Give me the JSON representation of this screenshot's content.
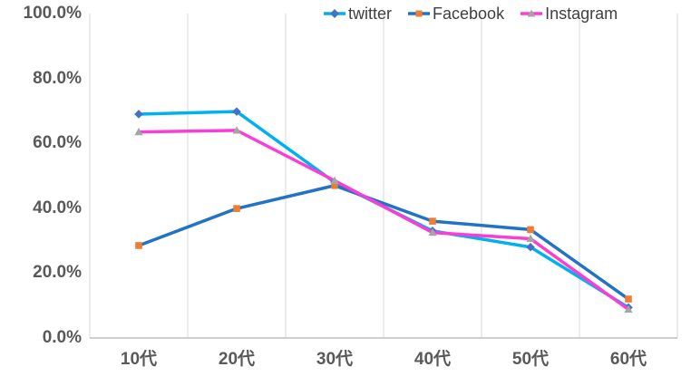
{
  "chart_data": {
    "type": "line",
    "categories": [
      "10代",
      "20代",
      "30代",
      "40代",
      "50代",
      "60代"
    ],
    "y_ticks": [
      "100.0%",
      "80.0%",
      "60.0%",
      "40.0%",
      "20.0%",
      "0.0%"
    ],
    "ylim": [
      0,
      100
    ],
    "y_tick_step": 20,
    "grid": "vertical-only",
    "legend_position": "top-center",
    "series": [
      {
        "name": "twitter",
        "color": "#00B0F0",
        "marker": "diamond",
        "marker_color": "#4472C4",
        "values": [
          69.0,
          69.8,
          48.0,
          33.0,
          28.0,
          9.4
        ]
      },
      {
        "name": "Facebook",
        "color": "#2273C5",
        "marker": "square",
        "marker_color": "#ED7D31",
        "values": [
          28.5,
          39.9,
          47.0,
          36.0,
          33.4,
          12.0
        ]
      },
      {
        "name": "Instagram",
        "color": "#FB3DD5",
        "marker": "triangle",
        "marker_color": "#A5A5A5",
        "values": [
          63.5,
          64.0,
          48.5,
          32.5,
          30.6,
          8.8
        ]
      }
    ]
  },
  "style_colors": {
    "gridline": "#D9D9D9",
    "axis_line": "#BFBFBF",
    "axis_text": "#595959",
    "legend_text": "#404040"
  }
}
